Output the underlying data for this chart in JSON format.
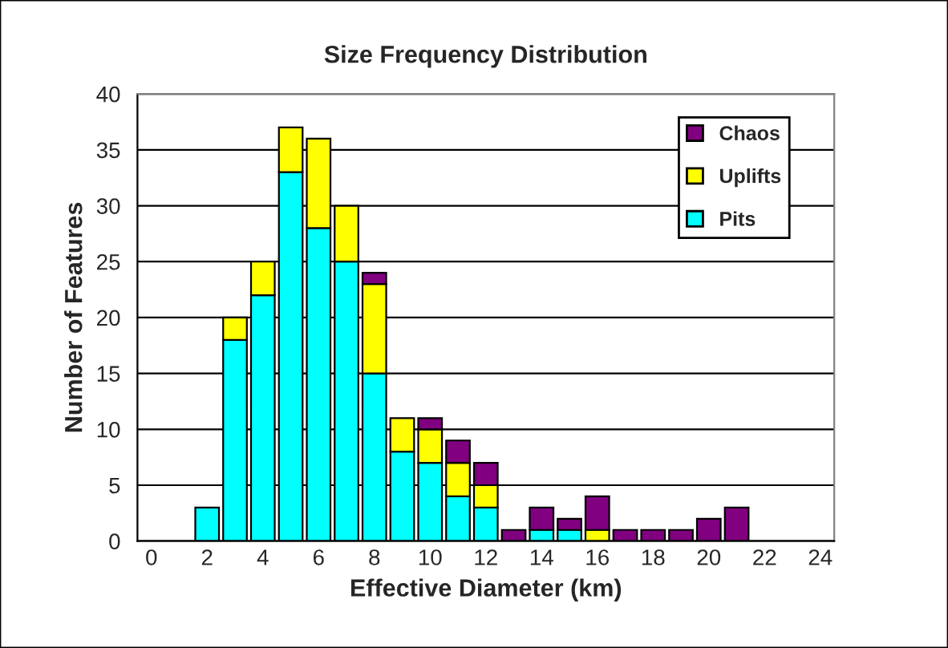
{
  "chart_data": {
    "type": "bar",
    "stacked": true,
    "title": "Size Frequency Distribution",
    "xlabel": "Effective Diameter (km)",
    "ylabel": "Number of Features",
    "categories": [
      "0",
      null,
      "2",
      null,
      "4",
      null,
      "6",
      null,
      "8",
      null,
      "10",
      null,
      "12",
      null,
      "14",
      null,
      "16",
      null,
      "18",
      null,
      "20",
      null,
      "22",
      null,
      "24"
    ],
    "series": [
      {
        "name": "Pits",
        "color": "#00ffff",
        "values": [
          0,
          0,
          3,
          18,
          22,
          33,
          28,
          25,
          15,
          8,
          7,
          4,
          3,
          0,
          1,
          1,
          0,
          0,
          0,
          0,
          0,
          0,
          0,
          0,
          0
        ]
      },
      {
        "name": "Uplifts",
        "color": "#ffff00",
        "values": [
          0,
          0,
          0,
          2,
          3,
          4,
          8,
          5,
          8,
          3,
          3,
          3,
          2,
          0,
          0,
          0,
          1,
          0,
          0,
          0,
          0,
          0,
          0,
          0,
          0
        ]
      },
      {
        "name": "Chaos",
        "color": "#800080",
        "values": [
          0,
          0,
          0,
          0,
          0,
          0,
          0,
          0,
          1,
          0,
          1,
          2,
          2,
          1,
          2,
          1,
          3,
          1,
          1,
          1,
          2,
          3,
          0,
          0,
          0
        ]
      }
    ],
    "ylim": [
      0,
      40
    ],
    "yticks": [
      0,
      5,
      10,
      15,
      20,
      25,
      30,
      35,
      40
    ],
    "grid": "y",
    "legend": "top right"
  }
}
